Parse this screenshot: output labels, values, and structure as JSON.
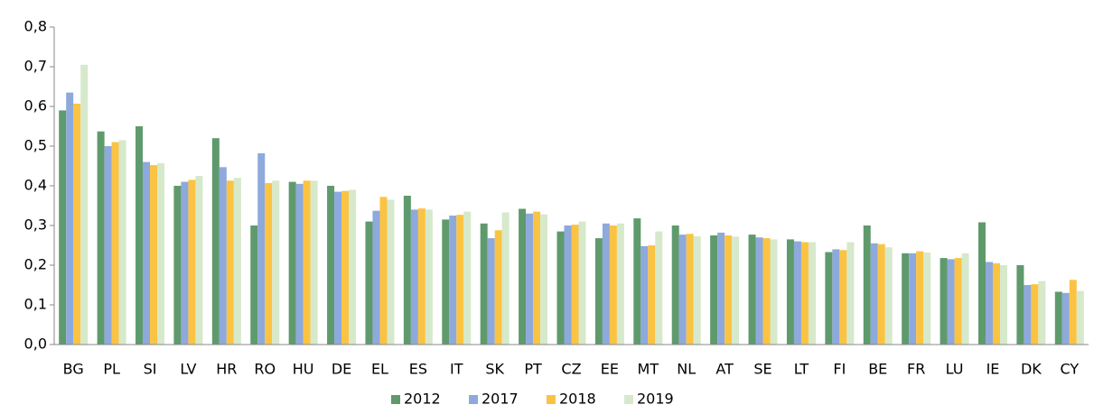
{
  "chart_data": {
    "type": "bar",
    "categories": [
      "BG",
      "PL",
      "SI",
      "LV",
      "HR",
      "RO",
      "HU",
      "DE",
      "EL",
      "ES",
      "IT",
      "SK",
      "PT",
      "CZ",
      "EE",
      "MT",
      "NL",
      "AT",
      "SE",
      "LT",
      "FI",
      "BE",
      "FR",
      "LU",
      "IE",
      "DK",
      "CY"
    ],
    "series": [
      {
        "name": "2012",
        "color": "#5f9a6c",
        "values": [
          0.59,
          0.537,
          0.55,
          0.4,
          0.52,
          0.3,
          0.41,
          0.4,
          0.31,
          0.375,
          0.315,
          0.305,
          0.342,
          0.285,
          0.268,
          0.318,
          0.3,
          0.275,
          0.277,
          0.265,
          0.233,
          0.3,
          0.23,
          0.218,
          0.308,
          0.2,
          0.133
        ]
      },
      {
        "name": "2017",
        "color": "#8ea9db",
        "values": [
          0.635,
          0.5,
          0.46,
          0.41,
          0.447,
          0.482,
          0.405,
          0.385,
          0.337,
          0.34,
          0.325,
          0.268,
          0.33,
          0.3,
          0.305,
          0.248,
          0.277,
          0.282,
          0.27,
          0.26,
          0.24,
          0.255,
          0.23,
          0.215,
          0.208,
          0.15,
          0.13
        ]
      },
      {
        "name": "2018",
        "color": "#fbc343",
        "values": [
          0.607,
          0.51,
          0.452,
          0.415,
          0.413,
          0.407,
          0.413,
          0.387,
          0.372,
          0.343,
          0.327,
          0.288,
          0.335,
          0.302,
          0.3,
          0.25,
          0.279,
          0.275,
          0.268,
          0.258,
          0.238,
          0.253,
          0.235,
          0.218,
          0.205,
          0.152,
          0.163
        ]
      },
      {
        "name": "2019",
        "color": "#d6e9cb",
        "values": [
          0.705,
          0.515,
          0.457,
          0.425,
          0.42,
          0.413,
          0.413,
          0.39,
          0.365,
          0.34,
          0.335,
          0.333,
          0.328,
          0.31,
          0.305,
          0.285,
          0.273,
          0.272,
          0.265,
          0.258,
          0.258,
          0.245,
          0.232,
          0.23,
          0.2,
          0.16,
          0.135
        ]
      }
    ],
    "ylim": [
      0,
      0.8
    ],
    "yticks": [
      {
        "value": 0,
        "label": "0,0"
      },
      {
        "value": 0.1,
        "label": "0,1"
      },
      {
        "value": 0.2,
        "label": "0,2"
      },
      {
        "value": 0.3,
        "label": "0,3"
      },
      {
        "value": 0.4,
        "label": "0,4"
      },
      {
        "value": 0.5,
        "label": "0,5"
      },
      {
        "value": 0.6,
        "label": "0,6"
      },
      {
        "value": 0.7,
        "label": "0,7"
      },
      {
        "value": 0.8,
        "label": "0,8"
      }
    ],
    "grid": false,
    "legend": "bottom"
  }
}
